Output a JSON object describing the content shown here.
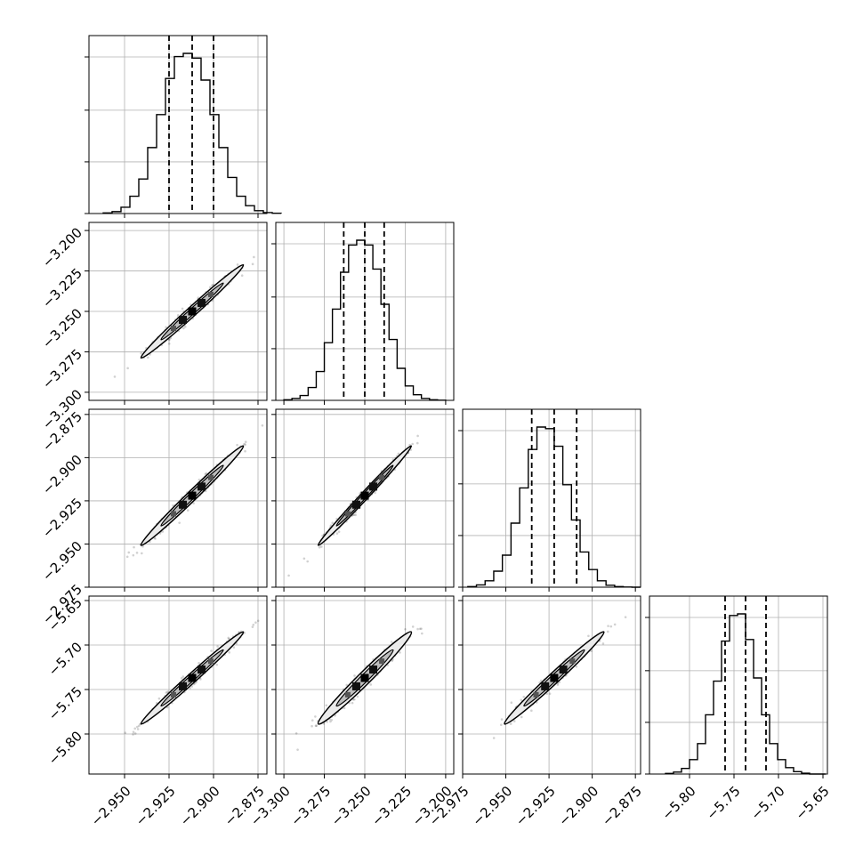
{
  "chart_data": {
    "type": "corner",
    "grid": true,
    "params": [
      {
        "range": [
          -2.97,
          -2.87
        ],
        "ticks": [
          "−2.950",
          "−2.925",
          "−2.900",
          "−2.875"
        ],
        "tick_values": [
          -2.95,
          -2.925,
          -2.9,
          -2.875
        ],
        "mean": -2.912,
        "sd": 0.0125,
        "quantiles": [
          -2.925,
          -2.912,
          -2.9
        ]
      },
      {
        "range": [
          -3.305,
          -3.195
        ],
        "ticks": [
          "−3.300",
          "−3.275",
          "−3.250",
          "−3.225",
          "−3.200"
        ],
        "tick_values": [
          -3.3,
          -3.275,
          -3.25,
          -3.225,
          -3.2
        ],
        "mean": -3.25,
        "sd": 0.0125,
        "quantiles": [
          -3.263,
          -3.25,
          -3.238
        ]
      },
      {
        "range": [
          -2.975,
          -2.872
        ],
        "ticks": [
          "−2.975",
          "−2.950",
          "−2.925",
          "−2.900",
          "−2.875"
        ],
        "tick_values": [
          -2.975,
          -2.95,
          -2.925,
          -2.9,
          -2.875
        ],
        "mean": -2.922,
        "sd": 0.0125,
        "quantiles": [
          -2.935,
          -2.922,
          -2.909
        ]
      },
      {
        "range": [
          -5.845,
          -5.645
        ],
        "ticks": [
          "−5.80",
          "−5.75",
          "−5.70",
          "−5.65"
        ],
        "tick_values": [
          -5.8,
          -5.75,
          -5.7,
          -5.65
        ],
        "mean": -5.737,
        "sd": 0.0225,
        "quantiles": [
          -5.76,
          -5.737,
          -5.714
        ]
      }
    ],
    "histograms": [
      [
        0.004,
        0.012,
        0.04,
        0.11,
        0.22,
        0.42,
        0.63,
        0.86,
        1.0,
        1.02,
        0.99,
        0.85,
        0.63,
        0.42,
        0.23,
        0.11,
        0.05,
        0.018,
        0.006,
        0.002
      ],
      [
        0.004,
        0.012,
        0.03,
        0.08,
        0.18,
        0.36,
        0.57,
        0.8,
        0.97,
        1.0,
        0.97,
        0.82,
        0.6,
        0.38,
        0.2,
        0.09,
        0.035,
        0.012,
        0.004,
        0.001
      ],
      [
        0.004,
        0.014,
        0.04,
        0.1,
        0.2,
        0.4,
        0.62,
        0.86,
        1.0,
        0.99,
        0.88,
        0.64,
        0.42,
        0.22,
        0.11,
        0.04,
        0.012,
        0.004,
        0.001,
        0.0
      ],
      [
        0.004,
        0.012,
        0.035,
        0.09,
        0.19,
        0.37,
        0.58,
        0.83,
        0.99,
        1.0,
        0.84,
        0.6,
        0.37,
        0.19,
        0.09,
        0.04,
        0.015,
        0.005,
        0.0,
        0.0
      ]
    ],
    "pair_correlations": [
      {
        "row": 1,
        "col": 0,
        "r": 0.985
      },
      {
        "row": 2,
        "col": 0,
        "r": 0.985
      },
      {
        "row": 2,
        "col": 1,
        "r": 0.99
      },
      {
        "row": 3,
        "col": 0,
        "r": 0.985
      },
      {
        "row": 3,
        "col": 1,
        "r": 0.97
      },
      {
        "row": 3,
        "col": 2,
        "r": 0.98
      }
    ]
  }
}
